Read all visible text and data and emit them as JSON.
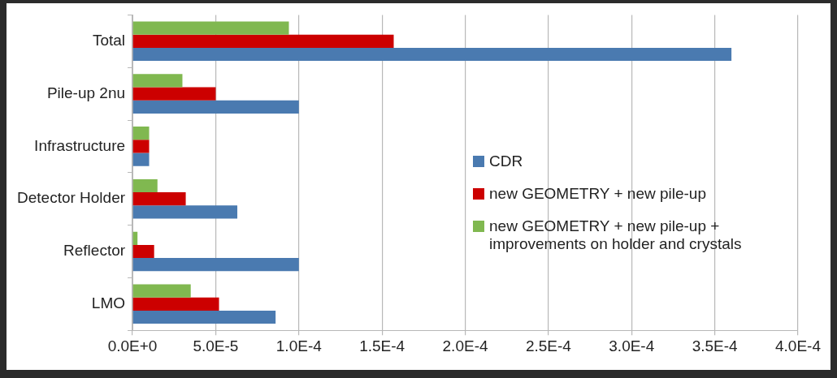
{
  "chart_data": {
    "type": "bar",
    "orientation": "horizontal",
    "categories": [
      "Total",
      "Pile-up 2nu",
      "Infrastructure",
      "Detector Holder",
      "Reflector",
      "LMO"
    ],
    "series": [
      {
        "name": "CDR",
        "color": "#4a7ab0",
        "values": [
          0.00036,
          0.0001,
          1e-05,
          6.3e-05,
          0.0001,
          8.6e-05
        ]
      },
      {
        "name": "new GEOMETRY + new pile-up",
        "color": "#cc0000",
        "values": [
          0.000157,
          5e-05,
          1e-05,
          3.2e-05,
          1.3e-05,
          5.2e-05
        ]
      },
      {
        "name": "new GEOMETRY + new pile-up + improvements on holder and crystals",
        "color": "#80b850",
        "values": [
          9.4e-05,
          3e-05,
          1e-05,
          1.5e-05,
          3e-06,
          3.5e-05
        ]
      }
    ],
    "xlim": [
      0,
      0.0004
    ],
    "xticks": [
      {
        "value": 0,
        "label": "0.0E+0"
      },
      {
        "value": 5e-05,
        "label": "5.0E-5"
      },
      {
        "value": 0.0001,
        "label": "1.0E-4"
      },
      {
        "value": 0.00015,
        "label": "1.5E-4"
      },
      {
        "value": 0.0002,
        "label": "2.0E-4"
      },
      {
        "value": 0.00025,
        "label": "2.5E-4"
      },
      {
        "value": 0.0003,
        "label": "3.0E-4"
      },
      {
        "value": 0.00035,
        "label": "3.5E-4"
      },
      {
        "value": 0.0004,
        "label": "4.0E-4"
      }
    ],
    "grid": "x",
    "legend": "right"
  }
}
